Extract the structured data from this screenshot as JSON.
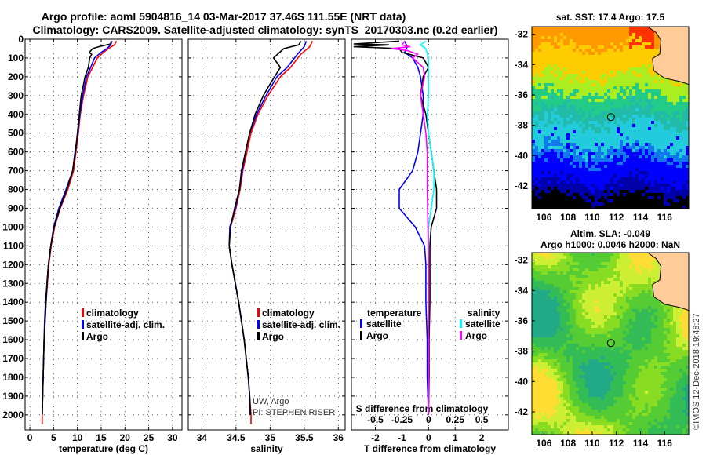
{
  "header": {
    "line1": "Argo profile: aoml 5904816_14 03-Mar-2017 37.46S 111.55E (NRT data)",
    "line2": "Climatology: CARS2009. Satellite-adjusted climatology: synTS_20170303.nc (0.2d earlier)"
  },
  "credit": "©IMOS 12-Dec-2018 19:48:27",
  "colors": {
    "climatology": "#ff0000",
    "satellite": "#0000ff",
    "argo": "#000000",
    "sat_salinity": "#00ffff",
    "argo_salinity": "#ff00ff"
  },
  "chart_data": [
    {
      "type": "line",
      "id": "temperature",
      "xlabel": "temperature (deg C)",
      "xlim": [
        -1,
        32
      ],
      "xticks": [
        0,
        5,
        10,
        15,
        20,
        25,
        30
      ],
      "ylim": [
        2080,
        0
      ],
      "yticks": [
        0,
        100,
        200,
        300,
        400,
        500,
        600,
        700,
        800,
        900,
        1000,
        1100,
        1200,
        1300,
        1400,
        1500,
        1600,
        1700,
        1800,
        1900,
        2000
      ],
      "legend": [
        "climatology",
        "satellite-adj. clim.",
        "Argo"
      ],
      "series": [
        {
          "name": "climatology",
          "color": "#ff0000",
          "points": [
            [
              18.2,
              10
            ],
            [
              17.8,
              30
            ],
            [
              16.5,
              50
            ],
            [
              15.5,
              70
            ],
            [
              14.2,
              100
            ],
            [
              13.2,
              150
            ],
            [
              12.2,
              200
            ],
            [
              11.3,
              300
            ],
            [
              10.6,
              400
            ],
            [
              10.2,
              500
            ],
            [
              9.7,
              600
            ],
            [
              9.2,
              700
            ],
            [
              8.0,
              800
            ],
            [
              6.4,
              900
            ],
            [
              5.2,
              1000
            ],
            [
              4.5,
              1100
            ],
            [
              4.0,
              1200
            ],
            [
              3.7,
              1300
            ],
            [
              3.4,
              1400
            ],
            [
              3.2,
              1500
            ],
            [
              3.0,
              1600
            ],
            [
              2.9,
              1700
            ],
            [
              2.8,
              1800
            ],
            [
              2.7,
              1900
            ],
            [
              2.6,
              2000
            ],
            [
              2.6,
              2050
            ]
          ]
        },
        {
          "name": "satellite-adj. clim.",
          "color": "#0000ff",
          "points": [
            [
              17.3,
              10
            ],
            [
              17.0,
              30
            ],
            [
              16.2,
              50
            ],
            [
              15.0,
              70
            ],
            [
              13.6,
              100
            ],
            [
              12.8,
              150
            ],
            [
              11.9,
              200
            ],
            [
              11.1,
              300
            ],
            [
              10.5,
              400
            ],
            [
              10.1,
              500
            ],
            [
              9.5,
              600
            ],
            [
              9.0,
              700
            ],
            [
              7.6,
              800
            ],
            [
              6.1,
              900
            ],
            [
              5.0,
              1000
            ],
            [
              4.4,
              1100
            ],
            [
              3.9,
              1200
            ],
            [
              3.6,
              1300
            ],
            [
              3.3,
              1400
            ],
            [
              3.1,
              1500
            ],
            [
              3.0,
              1600
            ],
            [
              2.9,
              1700
            ],
            [
              2.8,
              1800
            ],
            [
              2.7,
              1900
            ],
            [
              2.6,
              2000
            ]
          ]
        },
        {
          "name": "Argo",
          "color": "#000000",
          "points": [
            [
              17.1,
              10
            ],
            [
              17.0,
              25
            ],
            [
              14.5,
              40
            ],
            [
              13.2,
              50
            ],
            [
              12.5,
              70
            ],
            [
              13.0,
              80
            ],
            [
              12.6,
              100
            ],
            [
              12.3,
              150
            ],
            [
              11.6,
              200
            ],
            [
              10.8,
              300
            ],
            [
              10.4,
              400
            ],
            [
              10.0,
              500
            ],
            [
              9.6,
              600
            ],
            [
              9.0,
              700
            ],
            [
              7.8,
              800
            ],
            [
              6.3,
              900
            ],
            [
              5.1,
              1000
            ],
            [
              4.4,
              1100
            ],
            [
              3.9,
              1200
            ],
            [
              3.6,
              1300
            ],
            [
              3.4,
              1400
            ],
            [
              3.2,
              1500
            ],
            [
              3.0,
              1600
            ],
            [
              2.9,
              1700
            ],
            [
              2.8,
              1800
            ],
            [
              2.7,
              1900
            ],
            [
              2.6,
              2000
            ]
          ]
        }
      ]
    },
    {
      "type": "line",
      "id": "salinity",
      "xlabel": "salinity",
      "xlim": [
        33.8,
        36.1
      ],
      "xticks": [
        34,
        34.5,
        35,
        35.5,
        36
      ],
      "ylim": [
        2080,
        0
      ],
      "legend": [
        "climatology",
        "satellite-adj. clim.",
        "Argo"
      ],
      "annotations": [
        "UW, Argo",
        "PI: STEPHEN RISER"
      ],
      "series": [
        {
          "name": "climatology",
          "color": "#ff0000",
          "points": [
            [
              35.62,
              10
            ],
            [
              35.58,
              40
            ],
            [
              35.45,
              80
            ],
            [
              35.3,
              150
            ],
            [
              35.15,
              200
            ],
            [
              34.97,
              300
            ],
            [
              34.82,
              400
            ],
            [
              34.72,
              500
            ],
            [
              34.66,
              600
            ],
            [
              34.6,
              700
            ],
            [
              34.56,
              800
            ],
            [
              34.5,
              900
            ],
            [
              34.42,
              1000
            ],
            [
              34.4,
              1100
            ],
            [
              34.44,
              1200
            ],
            [
              34.49,
              1300
            ],
            [
              34.54,
              1400
            ],
            [
              34.58,
              1500
            ],
            [
              34.62,
              1600
            ],
            [
              34.65,
              1700
            ],
            [
              34.68,
              1800
            ],
            [
              34.7,
              1900
            ],
            [
              34.72,
              2000
            ],
            [
              34.72,
              2050
            ]
          ]
        },
        {
          "name": "satellite-adj. clim.",
          "color": "#0000ff",
          "points": [
            [
              35.53,
              10
            ],
            [
              35.5,
              40
            ],
            [
              35.4,
              80
            ],
            [
              35.25,
              150
            ],
            [
              35.1,
              200
            ],
            [
              34.94,
              300
            ],
            [
              34.8,
              400
            ],
            [
              34.7,
              500
            ],
            [
              34.64,
              600
            ],
            [
              34.59,
              700
            ],
            [
              34.55,
              800
            ],
            [
              34.49,
              900
            ],
            [
              34.41,
              1000
            ],
            [
              34.4,
              1100
            ],
            [
              34.44,
              1200
            ],
            [
              34.49,
              1300
            ],
            [
              34.54,
              1400
            ],
            [
              34.58,
              1500
            ],
            [
              34.62,
              1600
            ],
            [
              34.65,
              1700
            ],
            [
              34.68,
              1800
            ],
            [
              34.7,
              1900
            ],
            [
              34.71,
              2000
            ]
          ]
        },
        {
          "name": "Argo",
          "color": "#000000",
          "points": [
            [
              35.45,
              10
            ],
            [
              35.42,
              30
            ],
            [
              35.2,
              50
            ],
            [
              35.05,
              100
            ],
            [
              35.15,
              150
            ],
            [
              34.98,
              250
            ],
            [
              34.9,
              300
            ],
            [
              34.78,
              400
            ],
            [
              34.7,
              500
            ],
            [
              34.64,
              600
            ],
            [
              34.58,
              700
            ],
            [
              34.55,
              800
            ],
            [
              34.48,
              900
            ],
            [
              34.42,
              1000
            ],
            [
              34.4,
              1100
            ],
            [
              34.44,
              1200
            ],
            [
              34.49,
              1300
            ],
            [
              34.54,
              1400
            ],
            [
              34.58,
              1500
            ],
            [
              34.62,
              1600
            ],
            [
              34.65,
              1700
            ],
            [
              34.68,
              1800
            ],
            [
              34.7,
              1900
            ],
            [
              34.71,
              2000
            ]
          ]
        }
      ]
    },
    {
      "type": "line",
      "id": "difference",
      "xlabel": "T difference from climatology",
      "xlabel_top": "S difference from climatology",
      "xlim": [
        -2.9,
        3.0
      ],
      "xticks": [
        -2,
        -1,
        0,
        1,
        2
      ],
      "xticks_top": [
        {
          "label": "-0.5",
          "at": -2
        },
        {
          "label": "-0.25",
          "at": -1
        },
        {
          "label": "0",
          "at": 0
        },
        {
          "label": "0.25",
          "at": 1
        },
        {
          "label": "0.5",
          "at": 2
        }
      ],
      "ylim": [
        2080,
        0
      ],
      "legend": {
        "temperature_title": "temperature",
        "salinity_title": "salinity",
        "satellite": "satellite",
        "argo": "Argo"
      },
      "series": [
        {
          "name": "temperature satellite",
          "color": "#0000ff",
          "points": [
            [
              -0.9,
              10
            ],
            [
              -0.8,
              40
            ],
            [
              -0.9,
              70
            ],
            [
              -0.6,
              100
            ],
            [
              -0.4,
              150
            ],
            [
              -0.3,
              200
            ],
            [
              -0.2,
              300
            ],
            [
              -0.2,
              400
            ],
            [
              -0.3,
              500
            ],
            [
              -0.4,
              600
            ],
            [
              -0.6,
              700
            ],
            [
              -1.1,
              800
            ],
            [
              -1.1,
              900
            ],
            [
              -0.5,
              1000
            ],
            [
              -0.15,
              1100
            ],
            [
              -0.1,
              1200
            ],
            [
              -0.1,
              1400
            ],
            [
              -0.05,
              1600
            ],
            [
              -0.05,
              1800
            ],
            [
              0,
              2000
            ]
          ]
        },
        {
          "name": "temperature Argo",
          "color": "#000000",
          "points": [
            [
              -1.1,
              10
            ],
            [
              -2.8,
              25
            ],
            [
              -1.5,
              30
            ],
            [
              -2.8,
              40
            ],
            [
              -1.1,
              50
            ],
            [
              -1.0,
              70
            ],
            [
              -0.2,
              100
            ],
            [
              0,
              150
            ],
            [
              -0.2,
              200
            ],
            [
              -0.3,
              300
            ],
            [
              -0.1,
              400
            ],
            [
              0,
              500
            ],
            [
              0.1,
              600
            ],
            [
              0.2,
              700
            ],
            [
              0.3,
              800
            ],
            [
              0.3,
              900
            ],
            [
              0.1,
              1000
            ],
            [
              0.05,
              1100
            ],
            [
              0.05,
              1200
            ],
            [
              0.05,
              1400
            ],
            [
              0.02,
              1600
            ],
            [
              0.02,
              1800
            ],
            [
              0,
              2000
            ]
          ]
        },
        {
          "name": "salinity satellite",
          "color": "#00ffff",
          "points": [
            [
              -0.1,
              10
            ],
            [
              -0.3,
              30
            ],
            [
              -0.1,
              50
            ],
            [
              0,
              100
            ],
            [
              0,
              200
            ],
            [
              0,
              300
            ],
            [
              -0.05,
              400
            ],
            [
              0,
              500
            ],
            [
              0.1,
              600
            ],
            [
              0.2,
              700
            ],
            [
              0.2,
              800
            ],
            [
              0.1,
              900
            ],
            [
              0,
              1000
            ],
            [
              0,
              1200
            ],
            [
              0,
              1500
            ],
            [
              0,
              2000
            ]
          ]
        },
        {
          "name": "salinity Argo",
          "color": "#ff00ff",
          "points": [
            [
              -0.9,
              10
            ],
            [
              -1.0,
              30
            ],
            [
              -0.7,
              40
            ],
            [
              -1.4,
              50
            ],
            [
              -0.8,
              60
            ],
            [
              -0.4,
              80
            ],
            [
              -0.6,
              100
            ],
            [
              -0.2,
              150
            ],
            [
              -0.15,
              200
            ],
            [
              -0.3,
              300
            ],
            [
              -0.2,
              400
            ],
            [
              -0.1,
              500
            ],
            [
              -0.05,
              600
            ],
            [
              -0.05,
              800
            ],
            [
              -0.02,
              1000
            ],
            [
              0,
              1200
            ],
            [
              0,
              1500
            ],
            [
              0,
              2000
            ]
          ]
        }
      ]
    },
    {
      "type": "heatmap",
      "id": "sst_map",
      "title": "sat. SST: 17.4 Argo: 17.5",
      "xticks": [
        106,
        108,
        110,
        112,
        114,
        116
      ],
      "yticks": [
        -32,
        -34,
        -36,
        -38,
        -40,
        -42
      ],
      "xlim": [
        105,
        118
      ],
      "ylim": [
        -43.5,
        -31.5
      ],
      "marker": {
        "lon": 111.55,
        "lat": -37.46
      }
    },
    {
      "type": "heatmap",
      "id": "sla_map",
      "title_line1": "Altim. SLA: -0.049",
      "title_line2": "Argo h1000: 0.0046 h2000: NaN",
      "xticks": [
        106,
        108,
        110,
        112,
        114,
        116
      ],
      "yticks": [
        -32,
        -34,
        -36,
        -38,
        -40,
        -42
      ],
      "xlim": [
        105,
        118
      ],
      "ylim": [
        -43.5,
        -31.5
      ],
      "marker": {
        "lon": 111.55,
        "lat": -37.46
      }
    }
  ]
}
